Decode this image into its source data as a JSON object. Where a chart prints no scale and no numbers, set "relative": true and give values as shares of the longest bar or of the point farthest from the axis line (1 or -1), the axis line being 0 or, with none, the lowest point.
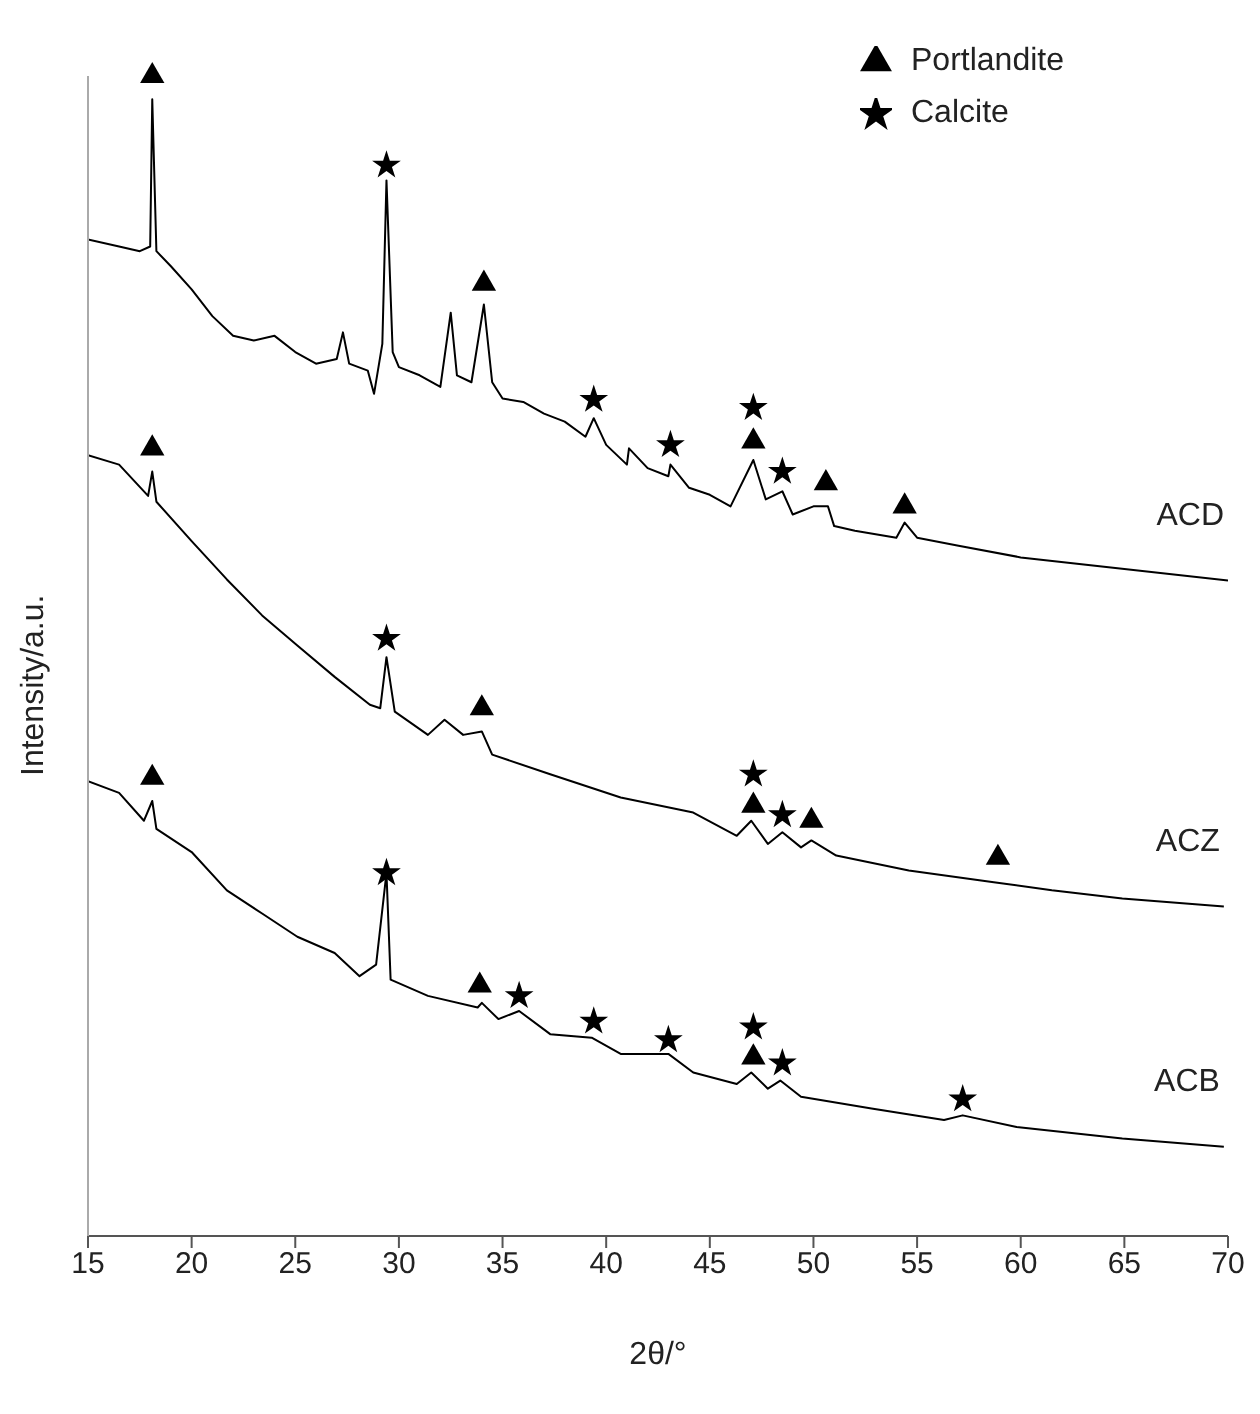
{
  "chart_data": {
    "type": "line",
    "relative": true,
    "xlabel": "2θ/°",
    "ylabel": "Intensity/a.u.",
    "xlim": [
      15,
      70
    ],
    "xticks": [
      15,
      20,
      25,
      30,
      35,
      40,
      45,
      50,
      55,
      60,
      65,
      70
    ],
    "grid": false,
    "legend": "top right",
    "line_style": "solid",
    "series": [
      {
        "name": "ACD",
        "color": "#000000",
        "marker": "none",
        "x": [
          15,
          16.5,
          17.5,
          18,
          18.1,
          18.3,
          19,
          20,
          21,
          22,
          23,
          24,
          25,
          26,
          27,
          27.3,
          27.6,
          28.5,
          28.8,
          29.2,
          29.4,
          29.7,
          30,
          31,
          32,
          32.5,
          32.8,
          33.5,
          34.1,
          34.5,
          35,
          36,
          37,
          38,
          39,
          39.4,
          40,
          41,
          41.1,
          42,
          43,
          43.1,
          44,
          45,
          46,
          47.1,
          47.7,
          48.5,
          49,
          50,
          50.7,
          51,
          52,
          54,
          54.4,
          55,
          57,
          60,
          65,
          70
        ],
        "values": [
          0.859,
          0.853,
          0.849,
          0.853,
          0.98,
          0.849,
          0.836,
          0.816,
          0.793,
          0.776,
          0.772,
          0.776,
          0.762,
          0.752,
          0.756,
          0.779,
          0.752,
          0.746,
          0.726,
          0.769,
          0.91,
          0.762,
          0.749,
          0.742,
          0.732,
          0.796,
          0.742,
          0.736,
          0.803,
          0.736,
          0.722,
          0.719,
          0.709,
          0.702,
          0.689,
          0.705,
          0.682,
          0.665,
          0.679,
          0.662,
          0.655,
          0.665,
          0.645,
          0.639,
          0.629,
          0.669,
          0.635,
          0.642,
          0.622,
          0.629,
          0.629,
          0.612,
          0.608,
          0.602,
          0.615,
          0.602,
          0.595,
          0.585,
          0.575,
          0.565
        ]
      },
      {
        "name": "ACZ",
        "color": "#000000",
        "marker": "none",
        "x": [
          15,
          16.5,
          17.9,
          18.1,
          18.3,
          20,
          21.7,
          23.4,
          25.1,
          26.9,
          28.6,
          29.1,
          29.4,
          29.8,
          31.4,
          32.2,
          33.1,
          34,
          34.5,
          37.3,
          40.7,
          44.2,
          46.3,
          47,
          47.8,
          48.5,
          49.4,
          49.9,
          51.1,
          54.6,
          58.7,
          61.5,
          64.9,
          69.8
        ],
        "values": [
          0.673,
          0.665,
          0.638,
          0.659,
          0.633,
          0.599,
          0.566,
          0.535,
          0.509,
          0.482,
          0.458,
          0.455,
          0.499,
          0.452,
          0.432,
          0.445,
          0.432,
          0.435,
          0.415,
          0.398,
          0.378,
          0.365,
          0.345,
          0.358,
          0.338,
          0.348,
          0.335,
          0.341,
          0.328,
          0.315,
          0.305,
          0.298,
          0.291,
          0.284
        ]
      },
      {
        "name": "ACB",
        "color": "#000000",
        "marker": "none",
        "x": [
          15,
          16.5,
          17.7,
          18.1,
          18.3,
          20,
          21.7,
          23.4,
          25.1,
          26.9,
          28.1,
          28.9,
          29.4,
          29.6,
          31.4,
          33.8,
          34,
          34.8,
          35.8,
          37.3,
          39.3,
          40.7,
          43,
          44.2,
          46.3,
          47,
          47.8,
          48.4,
          49.4,
          52.8,
          56.3,
          57.2,
          59.8,
          64.9,
          69.8
        ],
        "values": [
          0.392,
          0.382,
          0.358,
          0.375,
          0.351,
          0.331,
          0.298,
          0.278,
          0.258,
          0.244,
          0.224,
          0.234,
          0.313,
          0.221,
          0.207,
          0.197,
          0.201,
          0.187,
          0.194,
          0.174,
          0.171,
          0.157,
          0.157,
          0.141,
          0.131,
          0.141,
          0.127,
          0.134,
          0.12,
          0.11,
          0.1,
          0.104,
          0.094,
          0.084,
          0.077
        ]
      },
      {
        "name": "Portlandite",
        "type": "scatter",
        "color": "#000000",
        "marker": "triangle",
        "x": [
          18.1,
          34.1,
          47.1,
          50.6,
          54.4,
          18.1,
          34,
          47.1,
          49.9,
          58.9,
          18.1,
          33.9,
          47.1
        ],
        "values": [
          1,
          0.821,
          0.685,
          0.649,
          0.629,
          0.679,
          0.455,
          0.371,
          0.358,
          0.326,
          0.395,
          0.216,
          0.154
        ]
      },
      {
        "name": "Calcite",
        "type": "scatter",
        "color": "#000000",
        "marker": "star",
        "x": [
          29.4,
          39.4,
          43.1,
          47.1,
          48.5,
          29.4,
          47.1,
          48.5,
          29.4,
          35.8,
          39.4,
          43,
          47.1,
          48.5,
          57.2
        ],
        "values": [
          0.923,
          0.721,
          0.682,
          0.714,
          0.659,
          0.515,
          0.398,
          0.363,
          0.313,
          0.207,
          0.185,
          0.169,
          0.18,
          0.149,
          0.118
        ]
      }
    ]
  }
}
